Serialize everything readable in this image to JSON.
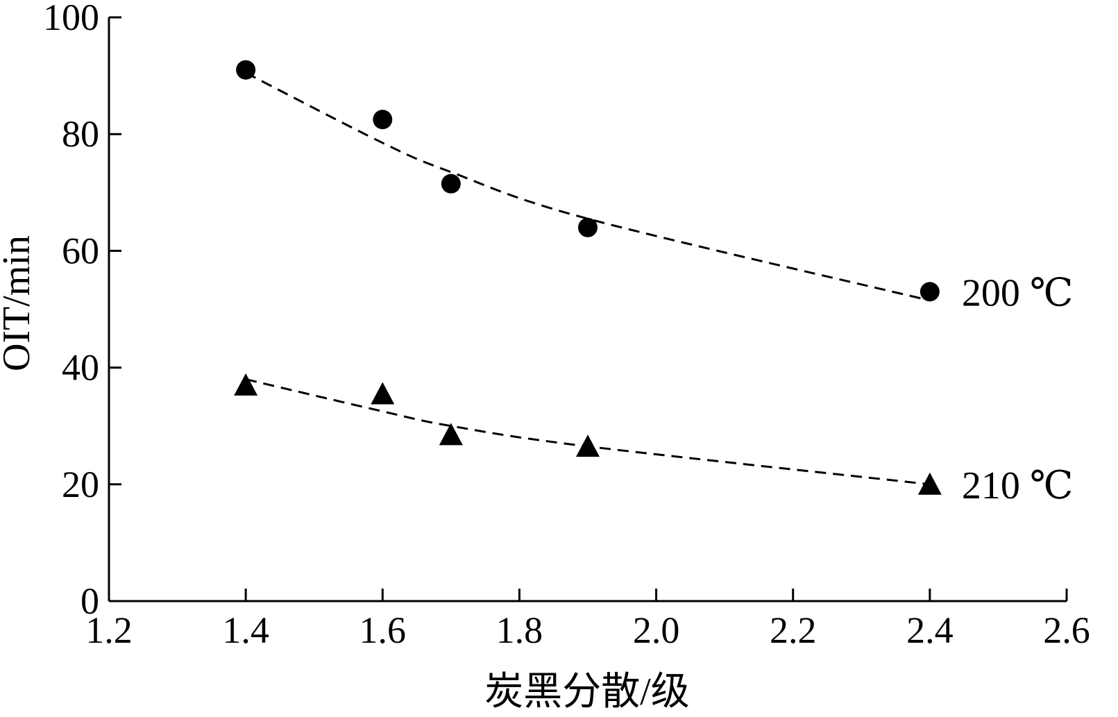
{
  "chart_data": {
    "type": "scatter",
    "xlabel": "炭黑分散/级",
    "ylabel": "OIT/min",
    "xlim": [
      1.2,
      2.6
    ],
    "ylim": [
      0,
      100
    ],
    "xticks": [
      "1.2",
      "1.4",
      "1.6",
      "1.8",
      "2.0",
      "2.2",
      "2.4",
      "2.6"
    ],
    "yticks": [
      "0",
      "20",
      "40",
      "60",
      "80",
      "100"
    ],
    "grid": false,
    "legend": "none",
    "series": [
      {
        "name": "200 ℃",
        "marker": "circle",
        "color": "#000000",
        "trendline": "dashed",
        "x": [
          1.4,
          1.6,
          1.7,
          1.9,
          2.4
        ],
        "y": [
          91,
          82.5,
          71.5,
          64,
          53
        ],
        "trend_y": [
          90.5,
          78.5,
          73.5,
          65.5,
          51.5
        ]
      },
      {
        "name": "210 ℃",
        "marker": "triangle",
        "color": "#000000",
        "trendline": "dashed",
        "x": [
          1.4,
          1.6,
          1.7,
          1.9,
          2.4
        ],
        "y": [
          37,
          35.5,
          28.5,
          26.5,
          20
        ],
        "trend_y": [
          38,
          32.5,
          30,
          26.5,
          20
        ]
      }
    ]
  }
}
